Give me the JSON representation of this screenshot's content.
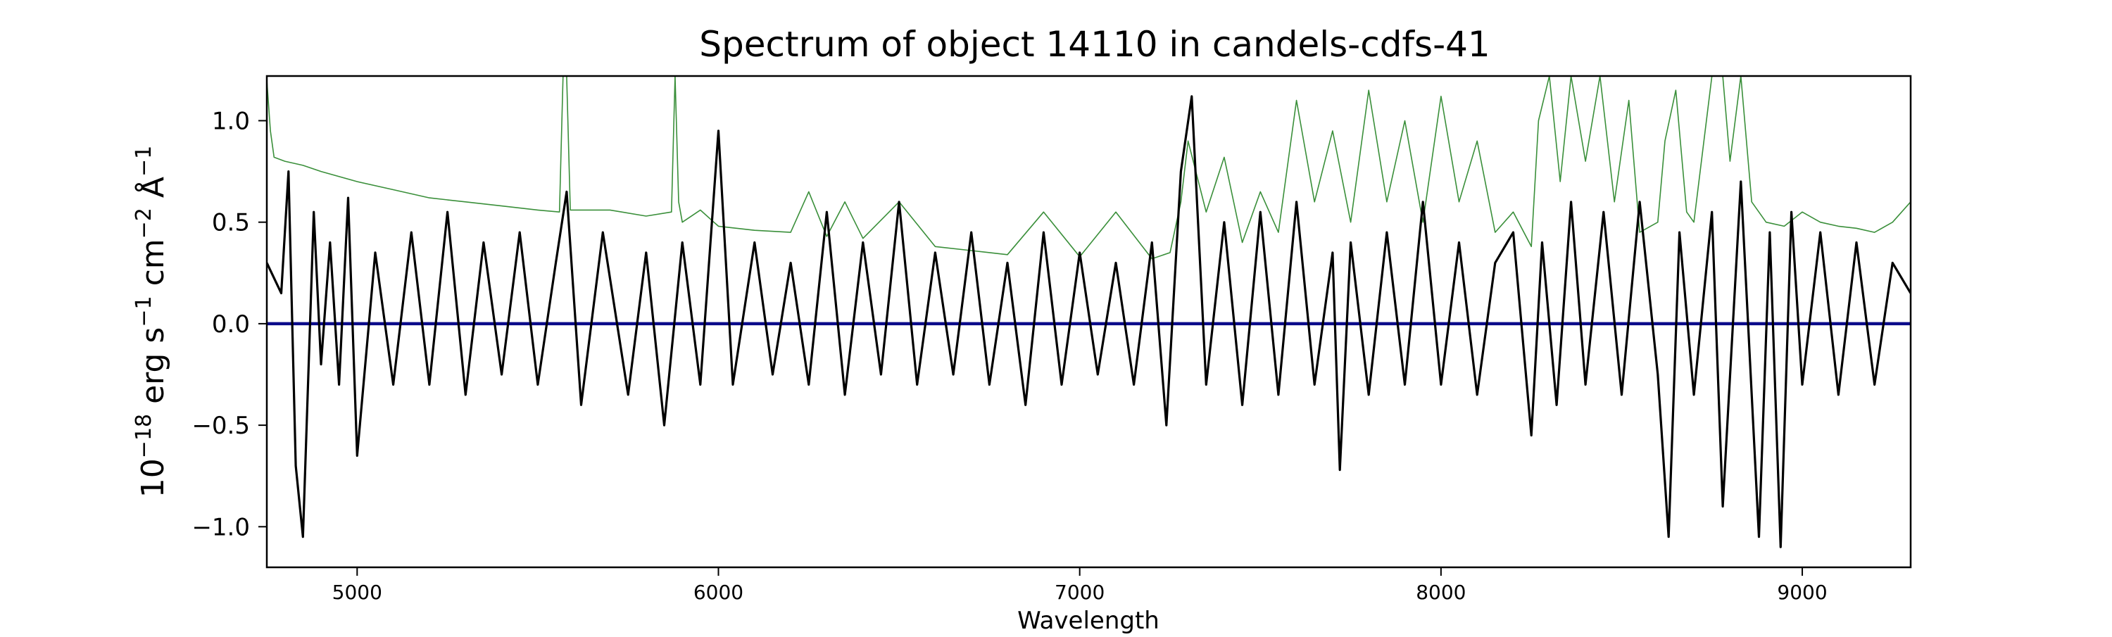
{
  "chart_data": {
    "type": "line",
    "title": "Spectrum of object 14110 in candels-cdfs-41",
    "xlabel": "Wavelength",
    "ylabel_parts": {
      "base": "10",
      "exp1": "−18",
      "unit1": " erg s",
      "exp2": "−1",
      "unit2": " cm",
      "exp3": "−2",
      "unit3": " Å",
      "exp4": "−1"
    },
    "xlim": [
      4750,
      9300
    ],
    "ylim": [
      -1.2,
      1.22
    ],
    "xticks": [
      {
        "value": 5000,
        "label": "5000"
      },
      {
        "value": 6000,
        "label": "6000"
      },
      {
        "value": 7000,
        "label": "7000"
      },
      {
        "value": 8000,
        "label": "8000"
      },
      {
        "value": 9000,
        "label": "9000"
      }
    ],
    "yticks": [
      {
        "value": 1.0,
        "label": "1.0"
      },
      {
        "value": 0.5,
        "label": "0.5"
      },
      {
        "value": 0.0,
        "label": "0.0"
      },
      {
        "value": -0.5,
        "label": "−0.5"
      },
      {
        "value": -1.0,
        "label": "−1.0"
      }
    ],
    "grid": false,
    "series": [
      {
        "id": "flux",
        "color": "#000000",
        "x": [
          4750,
          4790,
          4810,
          4830,
          4850,
          4880,
          4900,
          4925,
          4950,
          4975,
          5000,
          5050,
          5100,
          5150,
          5200,
          5250,
          5300,
          5350,
          5400,
          5450,
          5500,
          5550,
          5580,
          5620,
          5680,
          5750,
          5800,
          5850,
          5900,
          5950,
          6000,
          6040,
          6100,
          6150,
          6200,
          6250,
          6300,
          6350,
          6400,
          6450,
          6500,
          6550,
          6600,
          6650,
          6700,
          6750,
          6800,
          6850,
          6900,
          6950,
          7000,
          7050,
          7100,
          7150,
          7200,
          7240,
          7280,
          7310,
          7350,
          7400,
          7450,
          7500,
          7550,
          7600,
          7650,
          7700,
          7720,
          7750,
          7800,
          7850,
          7900,
          7950,
          8000,
          8050,
          8100,
          8150,
          8200,
          8250,
          8280,
          8320,
          8360,
          8400,
          8450,
          8500,
          8550,
          8600,
          8630,
          8660,
          8700,
          8750,
          8780,
          8830,
          8880,
          8910,
          8940,
          8970,
          9000,
          9050,
          9100,
          9150,
          9200,
          9250,
          9300
        ],
        "values": [
          0.3,
          0.15,
          0.75,
          -0.7,
          -1.05,
          0.55,
          -0.2,
          0.4,
          -0.3,
          0.62,
          -0.65,
          0.35,
          -0.3,
          0.45,
          -0.3,
          0.55,
          -0.35,
          0.4,
          -0.25,
          0.45,
          -0.3,
          0.3,
          0.65,
          -0.4,
          0.45,
          -0.35,
          0.35,
          -0.5,
          0.4,
          -0.3,
          0.95,
          -0.3,
          0.4,
          -0.25,
          0.3,
          -0.3,
          0.55,
          -0.35,
          0.4,
          -0.25,
          0.6,
          -0.3,
          0.35,
          -0.25,
          0.45,
          -0.3,
          0.3,
          -0.4,
          0.45,
          -0.3,
          0.35,
          -0.25,
          0.3,
          -0.3,
          0.4,
          -0.5,
          0.75,
          1.12,
          -0.3,
          0.5,
          -0.4,
          0.55,
          -0.35,
          0.6,
          -0.3,
          0.35,
          -0.72,
          0.4,
          -0.35,
          0.45,
          -0.3,
          0.6,
          -0.3,
          0.4,
          -0.35,
          0.3,
          0.45,
          -0.55,
          0.4,
          -0.4,
          0.6,
          -0.3,
          0.55,
          -0.35,
          0.6,
          -0.25,
          -1.05,
          0.45,
          -0.35,
          0.55,
          -0.9,
          0.7,
          -1.05,
          0.45,
          -1.1,
          0.55,
          -0.3,
          0.45,
          -0.35,
          0.4,
          -0.3,
          0.3,
          0.15
        ]
      },
      {
        "id": "error",
        "color": "#3a8f3a",
        "x": [
          4750,
          4760,
          4770,
          4800,
          4850,
          4900,
          5000,
          5100,
          5200,
          5300,
          5400,
          5500,
          5560,
          5570,
          5580,
          5590,
          5600,
          5700,
          5800,
          5870,
          5880,
          5890,
          5900,
          5950,
          6000,
          6100,
          6200,
          6250,
          6300,
          6350,
          6400,
          6500,
          6600,
          6700,
          6800,
          6900,
          7000,
          7100,
          7200,
          7250,
          7280,
          7300,
          7350,
          7400,
          7450,
          7500,
          7550,
          7600,
          7650,
          7700,
          7750,
          7800,
          7850,
          7900,
          7950,
          8000,
          8050,
          8100,
          8150,
          8200,
          8250,
          8270,
          8300,
          8330,
          8360,
          8400,
          8440,
          8480,
          8520,
          8550,
          8600,
          8620,
          8650,
          8680,
          8700,
          8750,
          8780,
          8800,
          8830,
          8860,
          8900,
          8950,
          9000,
          9050,
          9100,
          9150,
          9200,
          9250,
          9300
        ],
        "values": [
          1.2,
          0.95,
          0.82,
          0.8,
          0.78,
          0.75,
          0.7,
          0.66,
          0.62,
          0.6,
          0.58,
          0.56,
          0.55,
          1.22,
          1.22,
          0.56,
          0.56,
          0.56,
          0.53,
          0.55,
          1.22,
          0.6,
          0.5,
          0.56,
          0.48,
          0.46,
          0.45,
          0.65,
          0.43,
          0.6,
          0.42,
          0.6,
          0.38,
          0.36,
          0.34,
          0.55,
          0.33,
          0.55,
          0.32,
          0.35,
          0.6,
          0.9,
          0.55,
          0.82,
          0.4,
          0.65,
          0.45,
          1.1,
          0.6,
          0.95,
          0.5,
          1.15,
          0.6,
          1.0,
          0.5,
          1.12,
          0.6,
          0.9,
          0.45,
          0.55,
          0.38,
          1.0,
          1.22,
          0.7,
          1.22,
          0.8,
          1.22,
          0.6,
          1.1,
          0.45,
          0.5,
          0.9,
          1.15,
          0.55,
          0.5,
          1.22,
          1.22,
          0.8,
          1.22,
          0.6,
          0.5,
          0.48,
          0.55,
          0.5,
          0.48,
          0.47,
          0.45,
          0.5,
          0.6
        ]
      },
      {
        "id": "zero",
        "color": "#0b0b8a",
        "x": [
          4750,
          9300
        ],
        "values": [
          0.0,
          0.0
        ]
      }
    ]
  }
}
